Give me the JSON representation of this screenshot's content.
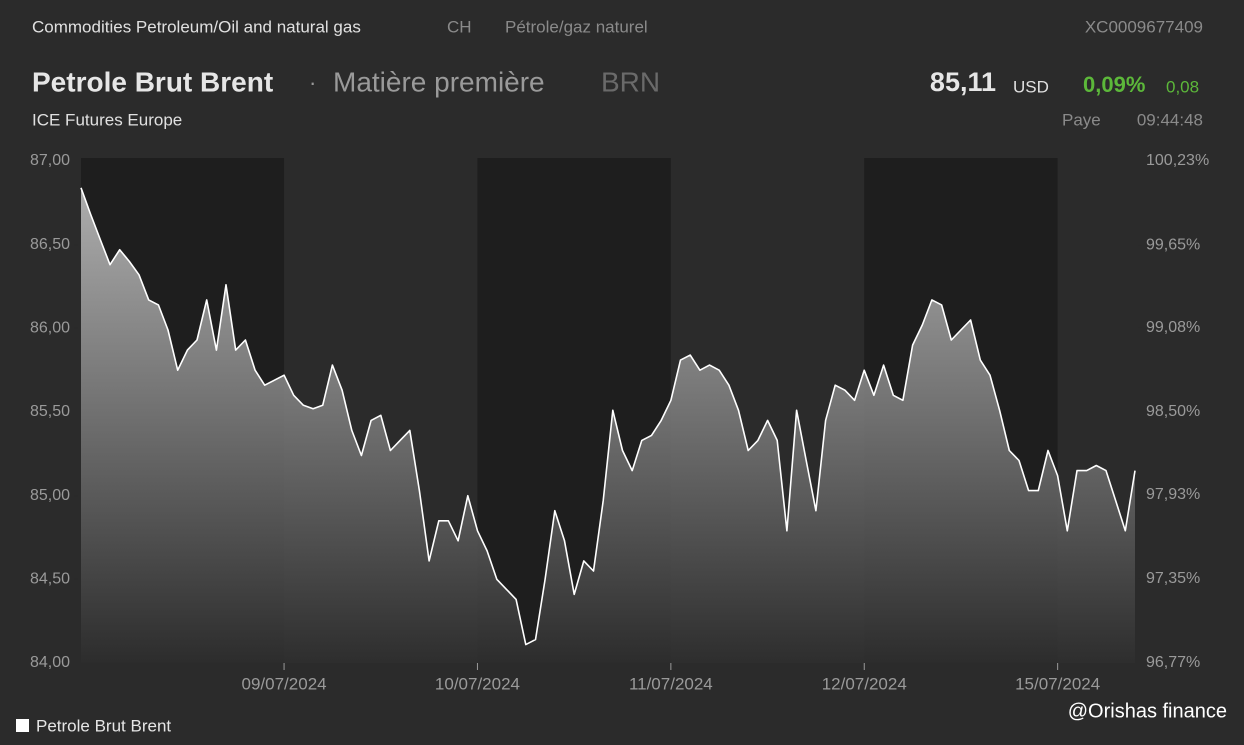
{
  "header": {
    "breadcrumb": "Commodities Petroleum/Oil and natural gas",
    "country": "CH",
    "category_fr": "Pétrole/gaz naturel",
    "isin": "XC0009677409",
    "name": "Petrole Brut Brent",
    "separator": "·",
    "asset_type": "Matière première",
    "ticker": "BRN",
    "price": "85,11",
    "currency": "USD",
    "change_pct": "0,09%",
    "change_abs": "0,08",
    "exchange": "ICE Futures Europe",
    "status": "Paye",
    "time": "09:44:48"
  },
  "watermark": "@Orishas finance",
  "chart_data": {
    "type": "line",
    "categories": [
      null,
      null,
      null,
      null,
      null,
      null,
      null,
      null,
      null,
      null,
      null,
      null,
      null,
      null,
      null,
      null,
      null,
      null,
      null,
      null,
      null,
      "09/07/2024",
      null,
      null,
      null,
      null,
      null,
      null,
      null,
      null,
      null,
      null,
      null,
      null,
      null,
      null,
      null,
      null,
      null,
      null,
      null,
      "10/07/2024",
      null,
      null,
      null,
      null,
      null,
      null,
      null,
      null,
      null,
      null,
      null,
      null,
      null,
      null,
      null,
      null,
      null,
      null,
      null,
      "11/07/2024",
      null,
      null,
      null,
      null,
      null,
      null,
      null,
      null,
      null,
      null,
      null,
      null,
      null,
      null,
      null,
      null,
      null,
      null,
      null,
      "12/07/2024",
      null,
      null,
      null,
      null,
      null,
      null,
      null,
      null,
      null,
      null,
      null,
      null,
      null,
      null,
      null,
      null,
      null,
      null,
      null,
      "15/07/2024",
      null,
      null,
      null,
      null,
      null,
      null,
      null,
      null
    ],
    "series": [
      {
        "name": "Petrole Brut Brent",
        "color": "#ffffff",
        "values": [
          86.84,
          86.68,
          86.53,
          86.38,
          86.47,
          86.4,
          86.32,
          86.17,
          86.14,
          85.99,
          85.75,
          85.87,
          85.93,
          86.17,
          85.87,
          86.26,
          85.87,
          85.93,
          85.75,
          85.66,
          85.69,
          85.72,
          85.6,
          85.54,
          85.52,
          85.54,
          85.78,
          85.63,
          85.39,
          85.24,
          85.45,
          85.48,
          85.27,
          85.33,
          85.39,
          85.03,
          84.61,
          84.85,
          84.85,
          84.73,
          85.0,
          84.79,
          84.67,
          84.5,
          84.44,
          84.38,
          84.11,
          84.14,
          84.5,
          84.91,
          84.73,
          84.41,
          84.61,
          84.55,
          84.97,
          85.51,
          85.27,
          85.15,
          85.33,
          85.36,
          85.45,
          85.57,
          85.81,
          85.84,
          85.75,
          85.78,
          85.75,
          85.66,
          85.51,
          85.27,
          85.33,
          85.45,
          85.33,
          84.79,
          85.51,
          85.21,
          84.91,
          85.45,
          85.66,
          85.63,
          85.57,
          85.75,
          85.6,
          85.78,
          85.6,
          85.57,
          85.9,
          86.02,
          86.17,
          86.14,
          85.93,
          85.99,
          86.05,
          85.81,
          85.72,
          85.51,
          85.27,
          85.21,
          85.03,
          85.03,
          85.27,
          85.12,
          84.79,
          85.15,
          85.15,
          85.18,
          85.15,
          84.97,
          84.79,
          85.15
        ]
      }
    ],
    "ylim": [
      84,
      87
    ],
    "yticks": [
      {
        "value": 84,
        "label": "84,00"
      },
      {
        "value": 84.5,
        "label": "84,50"
      },
      {
        "value": 85,
        "label": "85,00"
      },
      {
        "value": 85.5,
        "label": "85,50"
      },
      {
        "value": 86,
        "label": "86,00"
      },
      {
        "value": 86.5,
        "label": "86,50"
      },
      {
        "value": 87,
        "label": "87,00"
      }
    ],
    "y2lim": [
      96.77,
      100.23
    ],
    "y2ticks": [
      {
        "value": 96.77,
        "label": "96,77%"
      },
      {
        "value": 97.35,
        "label": "97,35%"
      },
      {
        "value": 97.93,
        "label": "97,93%"
      },
      {
        "value": 98.5,
        "label": "98,50%"
      },
      {
        "value": 99.08,
        "label": "99,08%"
      },
      {
        "value": 99.65,
        "label": "99,65%"
      },
      {
        "value": 100.23,
        "label": "100,23%"
      }
    ],
    "grid": false,
    "legend": "bottom-left"
  }
}
